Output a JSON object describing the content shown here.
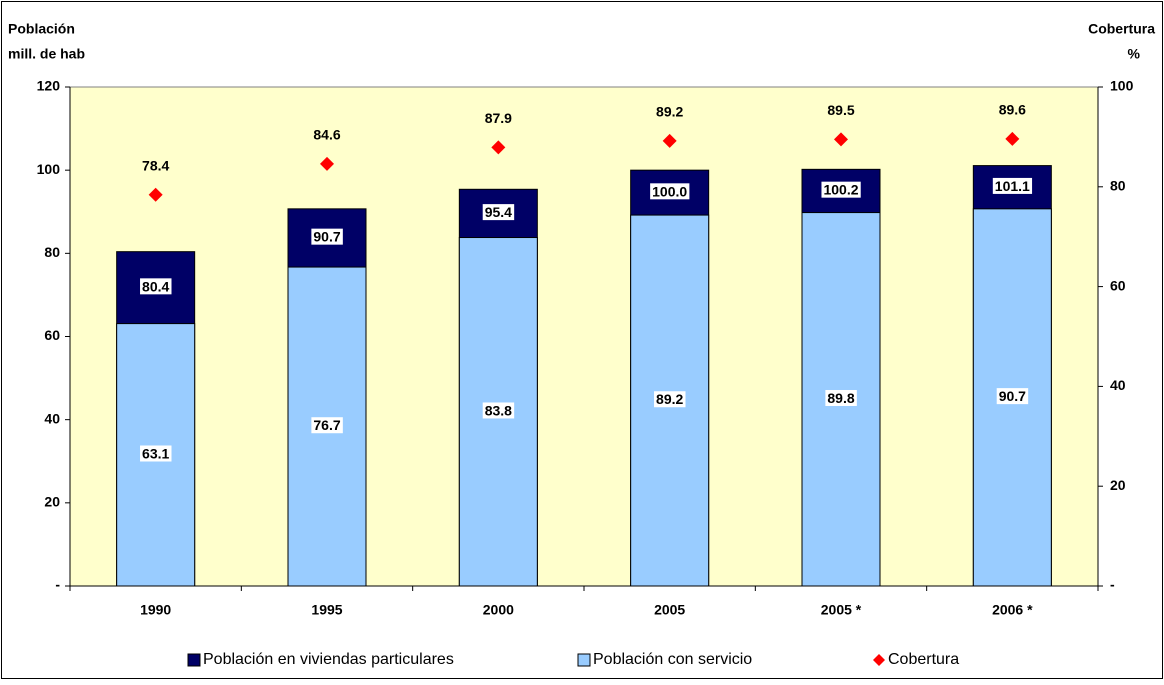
{
  "chart_data": {
    "type": "bar",
    "ylabel": [
      "Población",
      "mill. de hab"
    ],
    "y2label": [
      "Cobertura",
      "%"
    ],
    "categories": [
      "1990",
      "1995",
      "2000",
      "2005",
      "2005 *",
      "2006 *"
    ],
    "series": [
      {
        "name": "Población en viviendas particulares",
        "color": "#000066",
        "values": [
          80.4,
          90.7,
          95.4,
          100.0,
          100.2,
          101.1
        ],
        "value_labels": [
          "80.4",
          "90.7",
          "95.4",
          "100.0",
          "100.2",
          "101.1"
        ]
      },
      {
        "name": "Población con servicio",
        "color": "#99ccff",
        "values": [
          63.1,
          76.7,
          83.8,
          89.2,
          89.8,
          90.7
        ],
        "value_labels": [
          "63.1",
          "76.7",
          "83.8",
          "89.2",
          "89.8",
          "90.7"
        ]
      },
      {
        "name": "Cobertura",
        "color": "#ff0000",
        "type": "scatter",
        "axis": "y2",
        "values": [
          78.4,
          84.6,
          87.9,
          89.2,
          89.5,
          89.6
        ],
        "value_labels": [
          "78.4",
          "84.6",
          "87.9",
          "89.2",
          "89.5",
          "89.6"
        ]
      }
    ],
    "ylim": [
      0,
      120
    ],
    "yticks": [
      {
        "value": 0,
        "label": "-"
      },
      20,
      40,
      60,
      80,
      100,
      120
    ],
    "y2lim": [
      0,
      100
    ],
    "y2ticks": [
      {
        "value": 0,
        "label": "-"
      },
      20,
      40,
      60,
      80,
      100
    ],
    "plot_background": "#ffffcc"
  }
}
